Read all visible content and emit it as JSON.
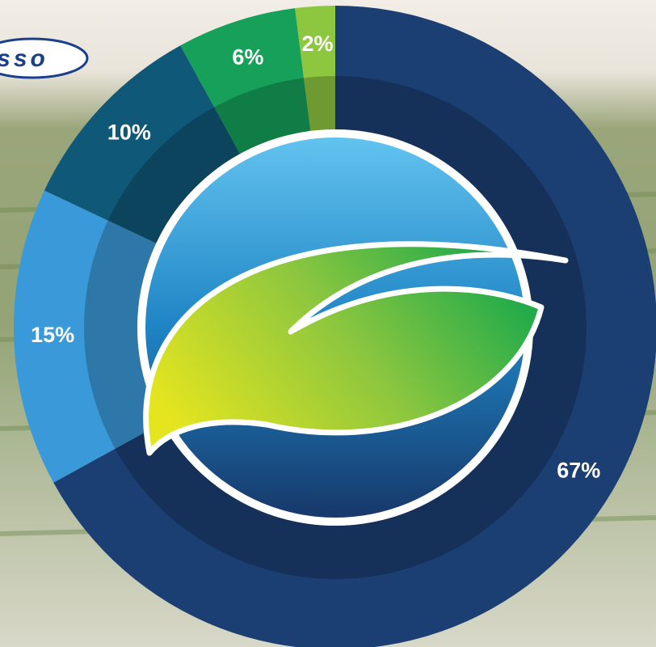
{
  "chart_data": {
    "type": "pie",
    "donut": true,
    "logo_text": "sso",
    "values": [
      67,
      15,
      10,
      6,
      2
    ],
    "value_labels": [
      "67%",
      "15%",
      "10%",
      "6%",
      "2%"
    ],
    "colors": [
      "#1b3f73",
      "#3a9ad9",
      "#0f5877",
      "#17a05a",
      "#8dc63f"
    ]
  }
}
